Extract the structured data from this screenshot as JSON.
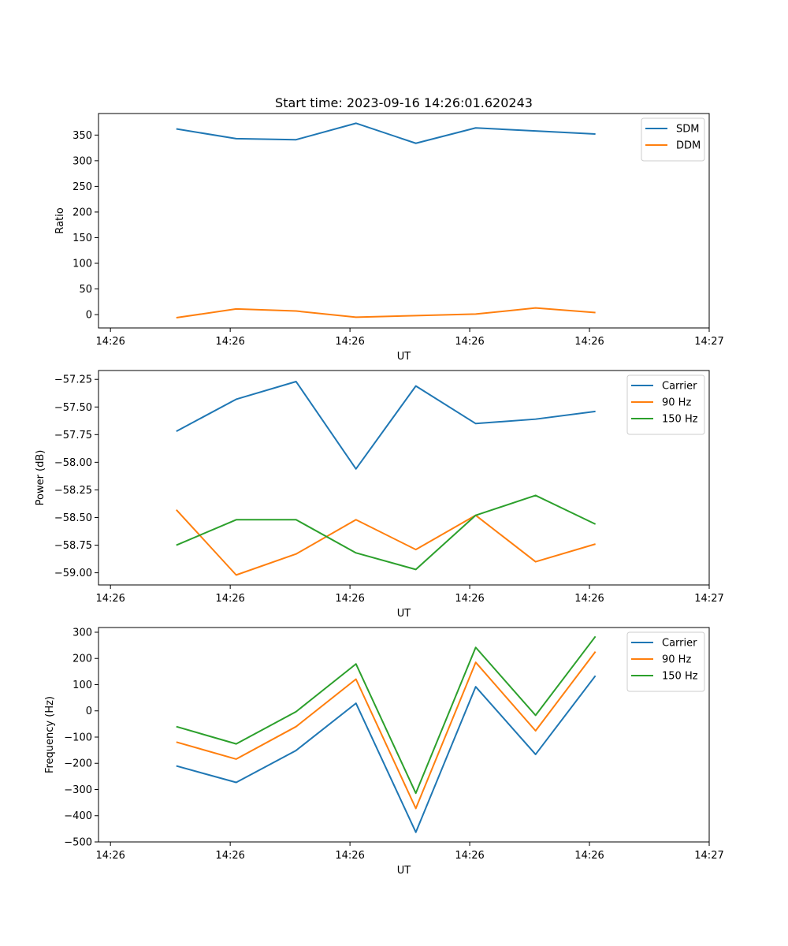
{
  "chart_data": [
    {
      "type": "line",
      "title": "Start time: 2023-09-16 14:26:01.620243",
      "xlabel": "UT",
      "ylabel": "Ratio",
      "x": [
        1.55,
        2.05,
        2.55,
        3.05,
        3.55,
        4.05,
        4.55,
        5.05
      ],
      "xlim": [
        0.9,
        6.0
      ],
      "xticks": [
        1.0,
        2.0,
        3.0,
        4.0,
        5.0,
        6.0
      ],
      "xtick_labels": [
        "14:26",
        "14:26",
        "14:26",
        "14:26",
        "14:26",
        "14:27"
      ],
      "ylim": [
        -26,
        392
      ],
      "yticks": [
        0,
        50,
        100,
        150,
        200,
        250,
        300,
        350
      ],
      "ytick_labels": [
        "0",
        "50",
        "100",
        "150",
        "200",
        "250",
        "300",
        "350"
      ],
      "legend": "top-right",
      "series": [
        {
          "name": "SDM",
          "color": "#1f77b4",
          "values": [
            362,
            343,
            341,
            373,
            334,
            364,
            358,
            352
          ]
        },
        {
          "name": "DDM",
          "color": "#ff7f0e",
          "values": [
            -6,
            11,
            7,
            -5,
            -2,
            1,
            13,
            4
          ]
        }
      ]
    },
    {
      "type": "line",
      "xlabel": "UT",
      "ylabel": "Power (dB)",
      "x": [
        1.55,
        2.05,
        2.55,
        3.05,
        3.55,
        4.05,
        4.55,
        5.05
      ],
      "xlim": [
        0.9,
        6.0
      ],
      "xticks": [
        1.0,
        2.0,
        3.0,
        4.0,
        5.0,
        6.0
      ],
      "xtick_labels": [
        "14:26",
        "14:26",
        "14:26",
        "14:26",
        "14:26",
        "14:27"
      ],
      "ylim": [
        -59.11,
        -57.17
      ],
      "yticks": [
        -59.0,
        -58.75,
        -58.5,
        -58.25,
        -58.0,
        -57.75,
        -57.5,
        -57.25
      ],
      "ytick_labels": [
        "−59.00",
        "−58.75",
        "−58.50",
        "−58.25",
        "−58.00",
        "−57.75",
        "−57.50",
        "−57.25"
      ],
      "legend": "top-right",
      "series": [
        {
          "name": "Carrier",
          "color": "#1f77b4",
          "values": [
            -57.72,
            -57.43,
            -57.27,
            -58.06,
            -57.31,
            -57.65,
            -57.61,
            -57.54
          ]
        },
        {
          "name": "90 Hz",
          "color": "#ff7f0e",
          "values": [
            -58.43,
            -59.02,
            -58.83,
            -58.52,
            -58.79,
            -58.48,
            -58.9,
            -58.74
          ]
        },
        {
          "name": "150 Hz",
          "color": "#2ca02c",
          "values": [
            -58.75,
            -58.52,
            -58.52,
            -58.82,
            -58.97,
            -58.48,
            -58.3,
            -58.56
          ]
        }
      ]
    },
    {
      "type": "line",
      "xlabel": "UT",
      "ylabel": "Frequency (Hz)",
      "x": [
        1.55,
        2.05,
        2.55,
        3.05,
        3.55,
        4.05,
        4.55,
        5.05
      ],
      "xlim": [
        0.9,
        6.0
      ],
      "xticks": [
        1.0,
        2.0,
        3.0,
        4.0,
        5.0,
        6.0
      ],
      "xtick_labels": [
        "14:26",
        "14:26",
        "14:26",
        "14:26",
        "14:26",
        "14:27"
      ],
      "ylim": [
        -500,
        318
      ],
      "yticks": [
        -500,
        -400,
        -300,
        -200,
        -100,
        0,
        100,
        200,
        300
      ],
      "ytick_labels": [
        "−500",
        "−400",
        "−300",
        "−200",
        "−100",
        "0",
        "100",
        "200",
        "300"
      ],
      "legend": "top-right",
      "series": [
        {
          "name": "Carrier",
          "color": "#1f77b4",
          "values": [
            -210,
            -273,
            -151,
            29,
            -463,
            92,
            -166,
            134
          ]
        },
        {
          "name": "90 Hz",
          "color": "#ff7f0e",
          "values": [
            -119,
            -184,
            -60,
            121,
            -372,
            185,
            -76,
            226
          ]
        },
        {
          "name": "150 Hz",
          "color": "#2ca02c",
          "values": [
            -60,
            -126,
            -3,
            179,
            -314,
            242,
            -17,
            284
          ]
        }
      ]
    }
  ]
}
